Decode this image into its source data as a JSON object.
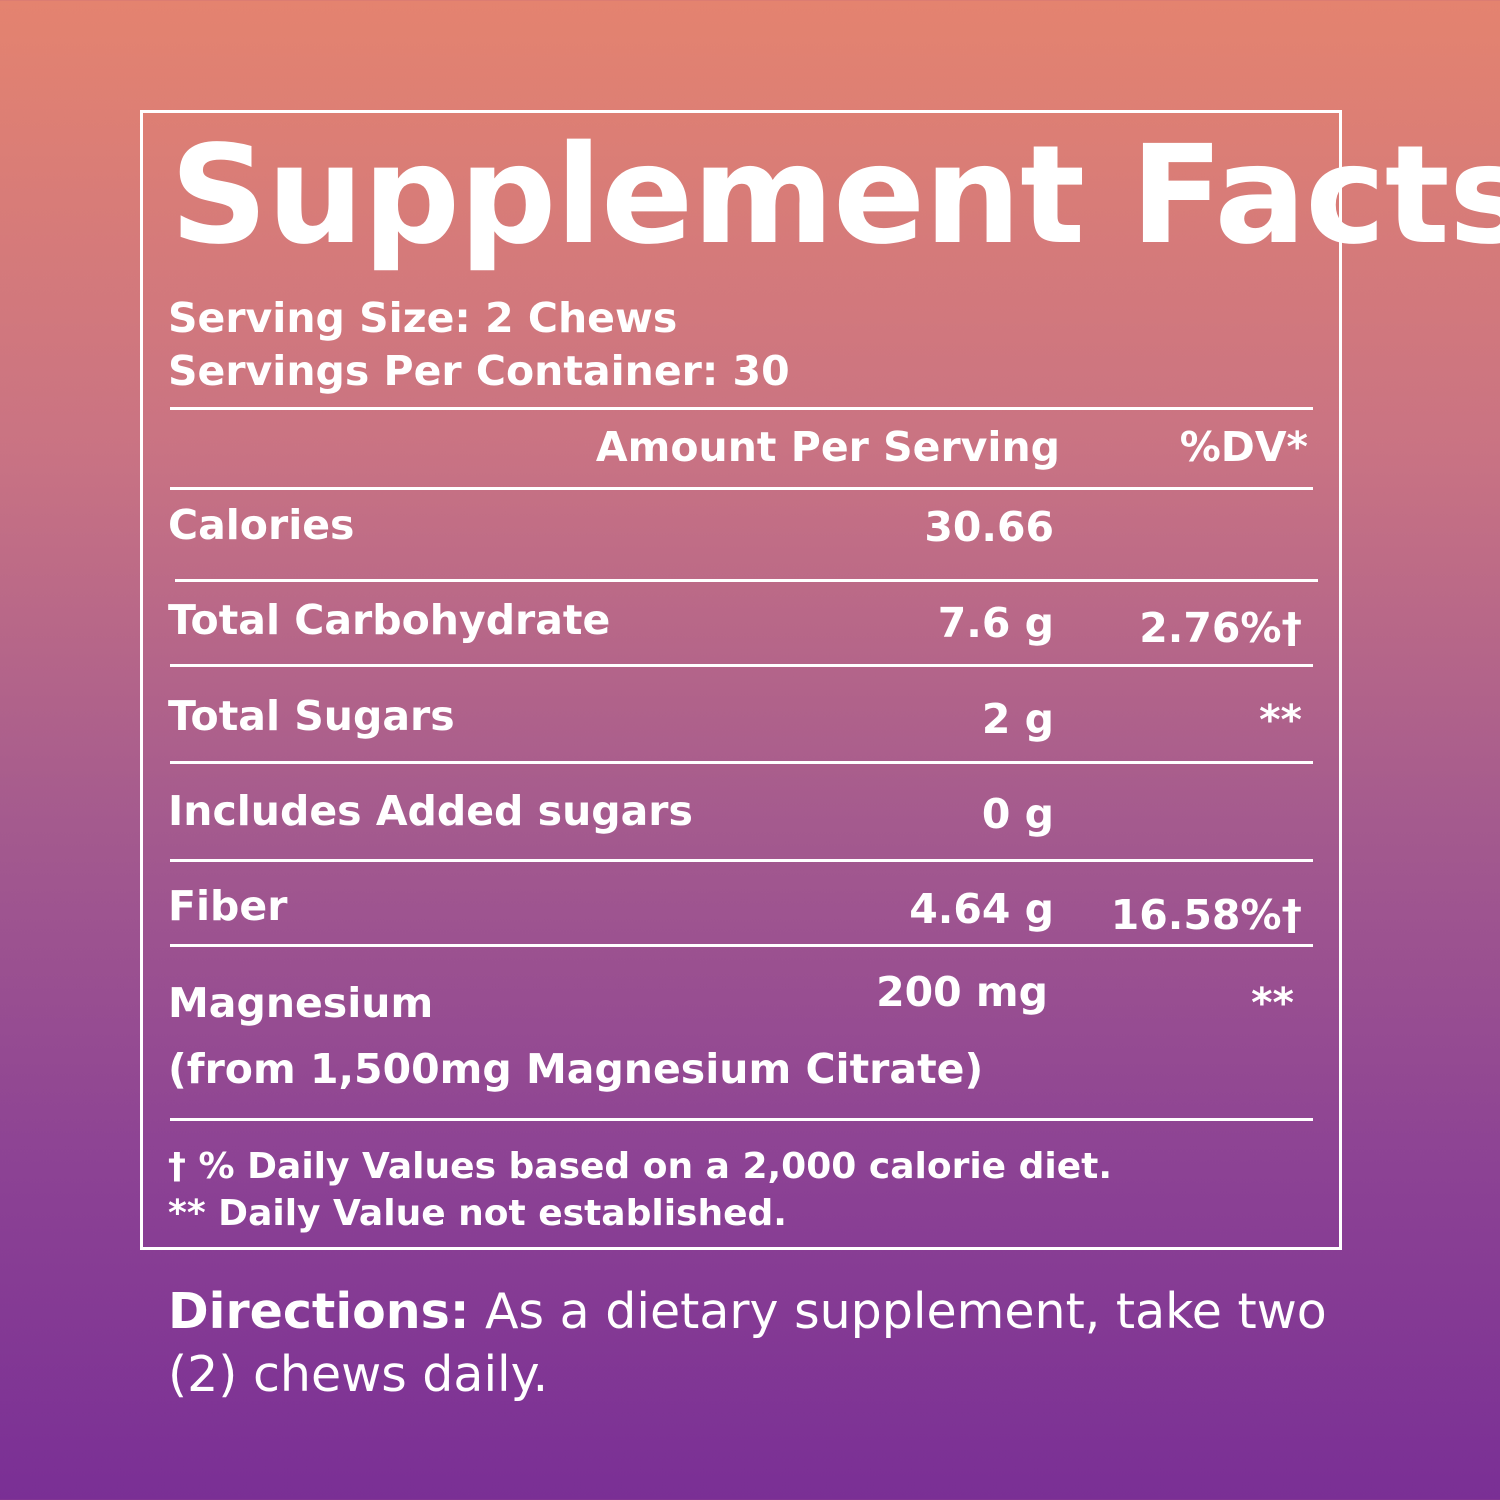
{
  "title": "Supplement Facts",
  "serving_size": "Serving Size: 2 Chews",
  "servings_per_container": "Servings Per Container: 30",
  "header": {
    "amount": "Amount Per Serving",
    "dv": "%DV*"
  },
  "rows": [
    {
      "label": "Calories",
      "amount": "30.66",
      "dv": ""
    },
    {
      "label": "Total Carbohydrate",
      "amount": "7.6 g",
      "dv": "2.76%†"
    },
    {
      "label": "Total Sugars",
      "amount": "2 g",
      "dv": "**"
    },
    {
      "label": "Includes Added sugars",
      "amount": "0 g",
      "dv": ""
    },
    {
      "label": "Fiber",
      "amount": "4.64 g",
      "dv": "16.58%†"
    },
    {
      "label": "Magnesium",
      "sublabel": "(from 1,500mg Magnesium Citrate)",
      "amount": "200 mg",
      "dv": "**"
    }
  ],
  "footnotes": [
    "† % Daily Values based on a 2,000 calorie diet.",
    "** Daily Value not established."
  ],
  "directions": {
    "lead": "Directions:",
    "text": " As a dietary supplement, take two (2) chews daily."
  }
}
